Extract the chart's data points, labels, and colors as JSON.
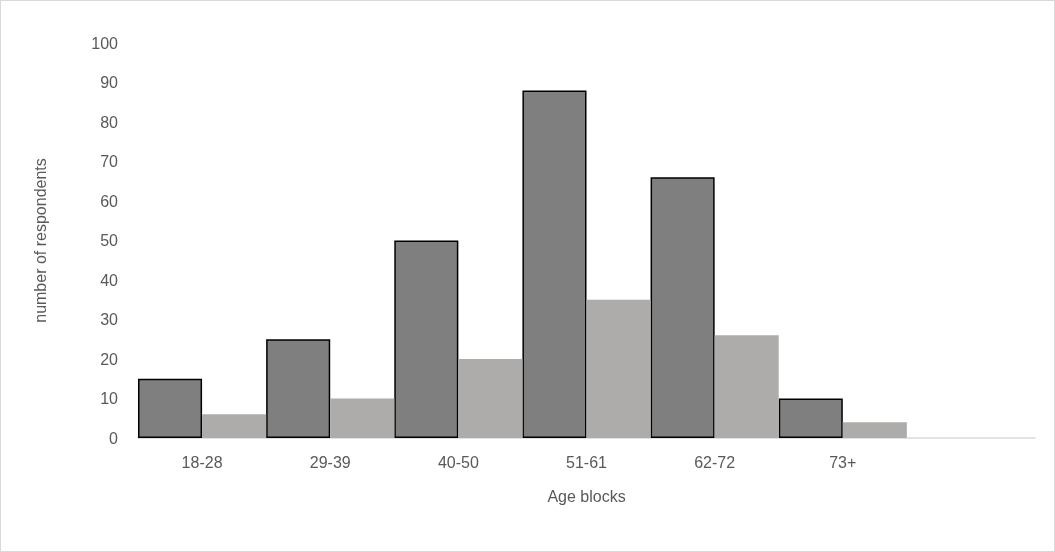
{
  "chart_data": {
    "type": "bar",
    "xlabel": "Age blocks",
    "ylabel": "number of respondents",
    "categories": [
      "18-28",
      "29-39",
      "40-50",
      "51-61",
      "62-72",
      "73+",
      null
    ],
    "series": [
      {
        "color": "#7f7f7f",
        "values": [
          15,
          25,
          50,
          88,
          66,
          10,
          null
        ]
      },
      {
        "color": "#aeabab",
        "values": [
          6,
          10,
          20,
          35,
          26,
          4,
          null
        ]
      }
    ],
    "ylim": [
      0,
      100
    ],
    "yticks": [
      0,
      10,
      20,
      30,
      40,
      50,
      60,
      70,
      80,
      90,
      100
    ],
    "grid": false
  }
}
